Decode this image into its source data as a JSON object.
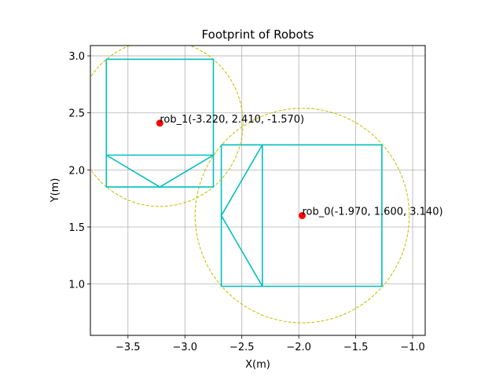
{
  "chart_data": {
    "type": "scatter",
    "title": "Footprint of Robots",
    "xlabel": "X(m)",
    "ylabel": "Y(m)",
    "xlim": [
      -3.83,
      -0.89
    ],
    "ylim": [
      0.55,
      3.09
    ],
    "xticks": [
      -3.5,
      -3.0,
      -2.5,
      -2.0,
      -1.5,
      -1.0
    ],
    "xtick_labels": [
      "−3.5",
      "−3.0",
      "−2.5",
      "−2.0",
      "−1.5",
      "−1.0"
    ],
    "yticks": [
      1.0,
      1.5,
      2.0,
      2.5,
      3.0
    ],
    "ytick_labels": [
      "1.0",
      "1.5",
      "2.0",
      "2.5",
      "3.0"
    ],
    "grid": true,
    "colors": {
      "footprint": "#00bfbf",
      "circle": "#bfbf00",
      "point": "#ff0000",
      "grid": "#b0b0b0"
    },
    "robots": [
      {
        "label": "rob_0(-1.970, 1.600, 3.140)",
        "x": -1.97,
        "y": 1.6,
        "theta": 3.14,
        "radius": 0.94,
        "footprint": [
          [
            [
              -2.68,
              2.22
            ],
            [
              -1.27,
              2.22
            ],
            [
              -1.27,
              0.98
            ],
            [
              -2.68,
              0.98
            ],
            [
              -2.68,
              2.22
            ]
          ],
          [
            [
              -2.32,
              2.22
            ],
            [
              -2.32,
              0.98
            ]
          ],
          [
            [
              -2.32,
              2.22
            ],
            [
              -2.68,
              1.6
            ],
            [
              -2.32,
              0.98
            ]
          ]
        ]
      },
      {
        "label": "rob_1(-3.220, 2.410, -1.570)",
        "x": -3.22,
        "y": 2.41,
        "theta": -1.57,
        "radius": 0.73,
        "footprint": [
          [
            [
              -3.69,
              2.97
            ],
            [
              -2.75,
              2.97
            ],
            [
              -2.75,
              1.85
            ],
            [
              -3.69,
              1.85
            ],
            [
              -3.69,
              2.97
            ]
          ],
          [
            [
              -3.69,
              2.13
            ],
            [
              -2.75,
              2.13
            ]
          ],
          [
            [
              -3.69,
              2.13
            ],
            [
              -3.22,
              1.85
            ],
            [
              -2.75,
              2.13
            ]
          ]
        ]
      }
    ]
  }
}
